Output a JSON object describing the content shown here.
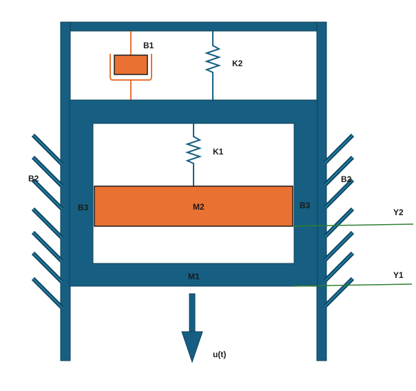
{
  "labels": {
    "b1": "B1",
    "k2": "K2",
    "k1": "K1",
    "b2_left": "B2",
    "b2_right": "B2",
    "b3_left": "B3",
    "b3_right": "B3",
    "m2": "M2",
    "m1": "M1",
    "y2": "Y2",
    "y1": "Y1",
    "input": "u(t)"
  },
  "colors": {
    "frame": "#165f82",
    "mass": "#e97132",
    "damper": "#e97132",
    "spring": "#165f82",
    "displacement_line": "#2e7d32",
    "text": "#1a1a1a",
    "background": "#ffffff"
  }
}
